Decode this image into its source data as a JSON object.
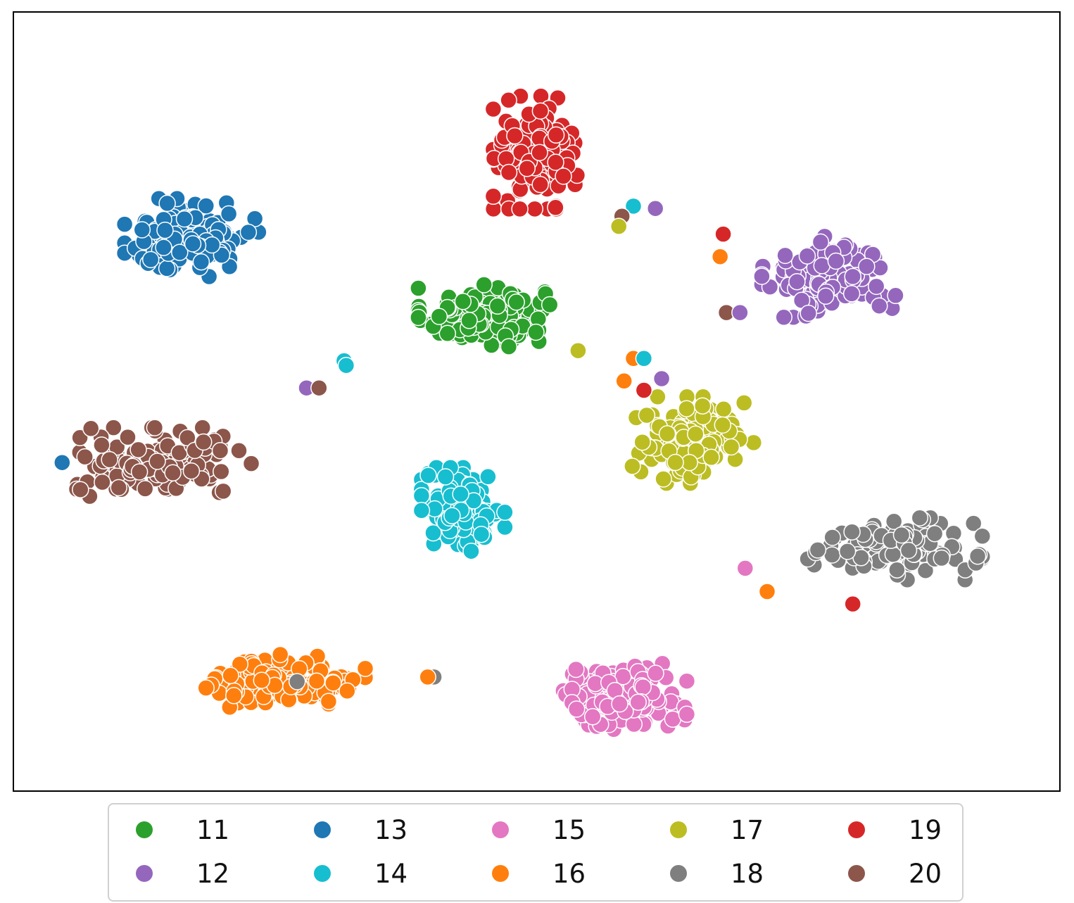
{
  "chart_data": {
    "type": "scatter",
    "title": "",
    "xlabel": "",
    "ylabel": "",
    "grid": false,
    "axis_ticks": false,
    "xlim": [
      0,
      100
    ],
    "ylim": [
      0,
      100
    ],
    "legend_placement": "bottom-center",
    "legend_columns": 5,
    "series": [
      {
        "name": "11",
        "color": "#2ca02c"
      },
      {
        "name": "12",
        "color": "#9467bd"
      },
      {
        "name": "13",
        "color": "#1f77b4"
      },
      {
        "name": "14",
        "color": "#17becf"
      },
      {
        "name": "15",
        "color": "#e377c2"
      },
      {
        "name": "16",
        "color": "#ff7f0e"
      },
      {
        "name": "17",
        "color": "#bcbd22"
      },
      {
        "name": "18",
        "color": "#7f7f7f"
      },
      {
        "name": "19",
        "color": "#d62728"
      },
      {
        "name": "20",
        "color": "#8c564b"
      }
    ],
    "clusters": [
      {
        "series": "11",
        "center": [
          45,
          61
        ],
        "spread": [
          5.2,
          3.3
        ],
        "count": 150
      },
      {
        "series": "12",
        "center": [
          78,
          66
        ],
        "spread": [
          5.3,
          4.3
        ],
        "count": 130
      },
      {
        "series": "13",
        "center": [
          17,
          71
        ],
        "spread": [
          5.3,
          4.2
        ],
        "count": 130
      },
      {
        "series": "14",
        "center": [
          43,
          36
        ],
        "spread": [
          3.3,
          4.5
        ],
        "count": 130
      },
      {
        "series": "15",
        "center": [
          58,
          12
        ],
        "spread": [
          5.3,
          3.5
        ],
        "count": 140
      },
      {
        "series": "16",
        "center": [
          26,
          14
        ],
        "spread": [
          6.3,
          2.8
        ],
        "count": 140
      },
      {
        "series": "17",
        "center": [
          65,
          45
        ],
        "spread": [
          4.8,
          4.6
        ],
        "count": 130
      },
      {
        "series": "18",
        "center": [
          84,
          31
        ],
        "spread": [
          7.2,
          3.3
        ],
        "count": 110
      },
      {
        "series": "19",
        "center": [
          50,
          82
        ],
        "spread": [
          3.4,
          6.0
        ],
        "count": 130
      },
      {
        "series": "20",
        "center": [
          14,
          42
        ],
        "spread": [
          7.2,
          3.8
        ],
        "count": 130
      }
    ],
    "outliers": [
      {
        "series": "14",
        "x": 59.3,
        "y": 75.1
      },
      {
        "series": "20",
        "x": 58.2,
        "y": 73.8
      },
      {
        "series": "17",
        "x": 57.9,
        "y": 72.5
      },
      {
        "series": "12",
        "x": 61.4,
        "y": 74.8
      },
      {
        "series": "19",
        "x": 67.9,
        "y": 71.5
      },
      {
        "series": "16",
        "x": 67.6,
        "y": 68.6
      },
      {
        "series": "20",
        "x": 68.2,
        "y": 61.4
      },
      {
        "series": "12",
        "x": 69.5,
        "y": 61.4
      },
      {
        "series": "16",
        "x": 59.3,
        "y": 55.5
      },
      {
        "series": "14",
        "x": 60.3,
        "y": 55.5
      },
      {
        "series": "16",
        "x": 58.4,
        "y": 52.6
      },
      {
        "series": "12",
        "x": 62.0,
        "y": 52.9
      },
      {
        "series": "19",
        "x": 60.3,
        "y": 51.4
      },
      {
        "series": "17",
        "x": 54.0,
        "y": 56.5
      },
      {
        "series": "14",
        "x": 31.6,
        "y": 55.2
      },
      {
        "series": "14",
        "x": 31.8,
        "y": 54.6
      },
      {
        "series": "12",
        "x": 28.0,
        "y": 51.7
      },
      {
        "series": "20",
        "x": 29.2,
        "y": 51.7
      },
      {
        "series": "13",
        "x": 4.6,
        "y": 42.1
      },
      {
        "series": "15",
        "x": 70.0,
        "y": 28.5
      },
      {
        "series": "16",
        "x": 72.1,
        "y": 25.5
      },
      {
        "series": "19",
        "x": 80.3,
        "y": 23.9
      },
      {
        "series": "18",
        "x": 27.1,
        "y": 13.9
      },
      {
        "series": "18",
        "x": 40.2,
        "y": 14.5
      },
      {
        "series": "16",
        "x": 39.6,
        "y": 14.5
      }
    ]
  }
}
